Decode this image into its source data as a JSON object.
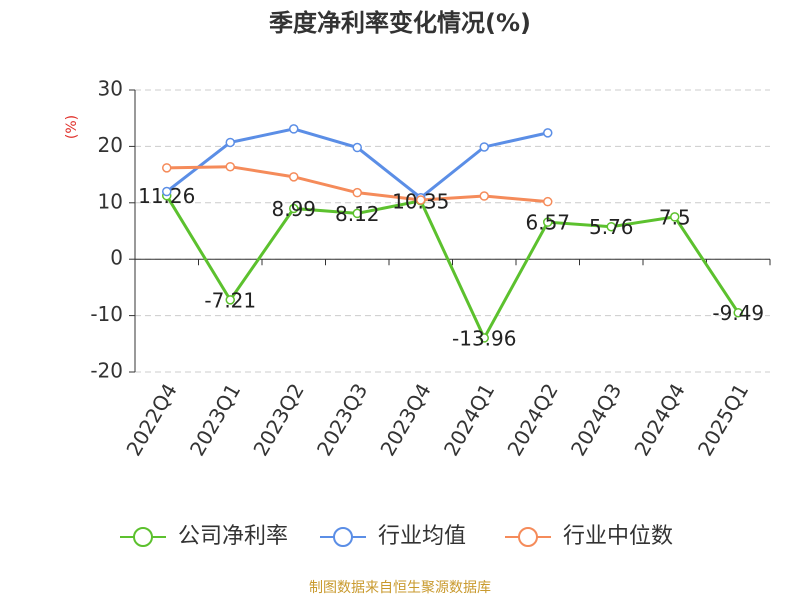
{
  "chart_data": {
    "type": "line",
    "title": "季度净利率变化情况(%)",
    "y_label": "(%)",
    "source": "制图数据来自恒生聚源数据库",
    "categories": [
      "2022Q4",
      "2023Q1",
      "2023Q2",
      "2023Q3",
      "2023Q4",
      "2024Q1",
      "2024Q2",
      "2024Q3",
      "2024Q4",
      "2025Q1"
    ],
    "series": [
      {
        "name": "公司净利率",
        "color": "#5cc12e",
        "values": [
          11.26,
          -7.21,
          8.99,
          8.12,
          10.35,
          -13.96,
          6.57,
          5.76,
          7.5,
          -9.49
        ],
        "show_labels": true
      },
      {
        "name": "行业均值",
        "color": "#5b8ee6",
        "values": [
          12.0,
          20.7,
          23.1,
          19.8,
          10.9,
          19.9,
          22.4,
          null,
          null,
          null
        ]
      },
      {
        "name": "行业中位数",
        "color": "#f58b5a",
        "values": [
          16.2,
          16.4,
          14.6,
          11.8,
          10.5,
          11.2,
          10.2,
          null,
          null,
          null
        ]
      }
    ],
    "ylim": [
      -20,
      30
    ],
    "yticks": [
      -20,
      -10,
      0,
      10,
      20,
      30
    ],
    "grid": true
  }
}
